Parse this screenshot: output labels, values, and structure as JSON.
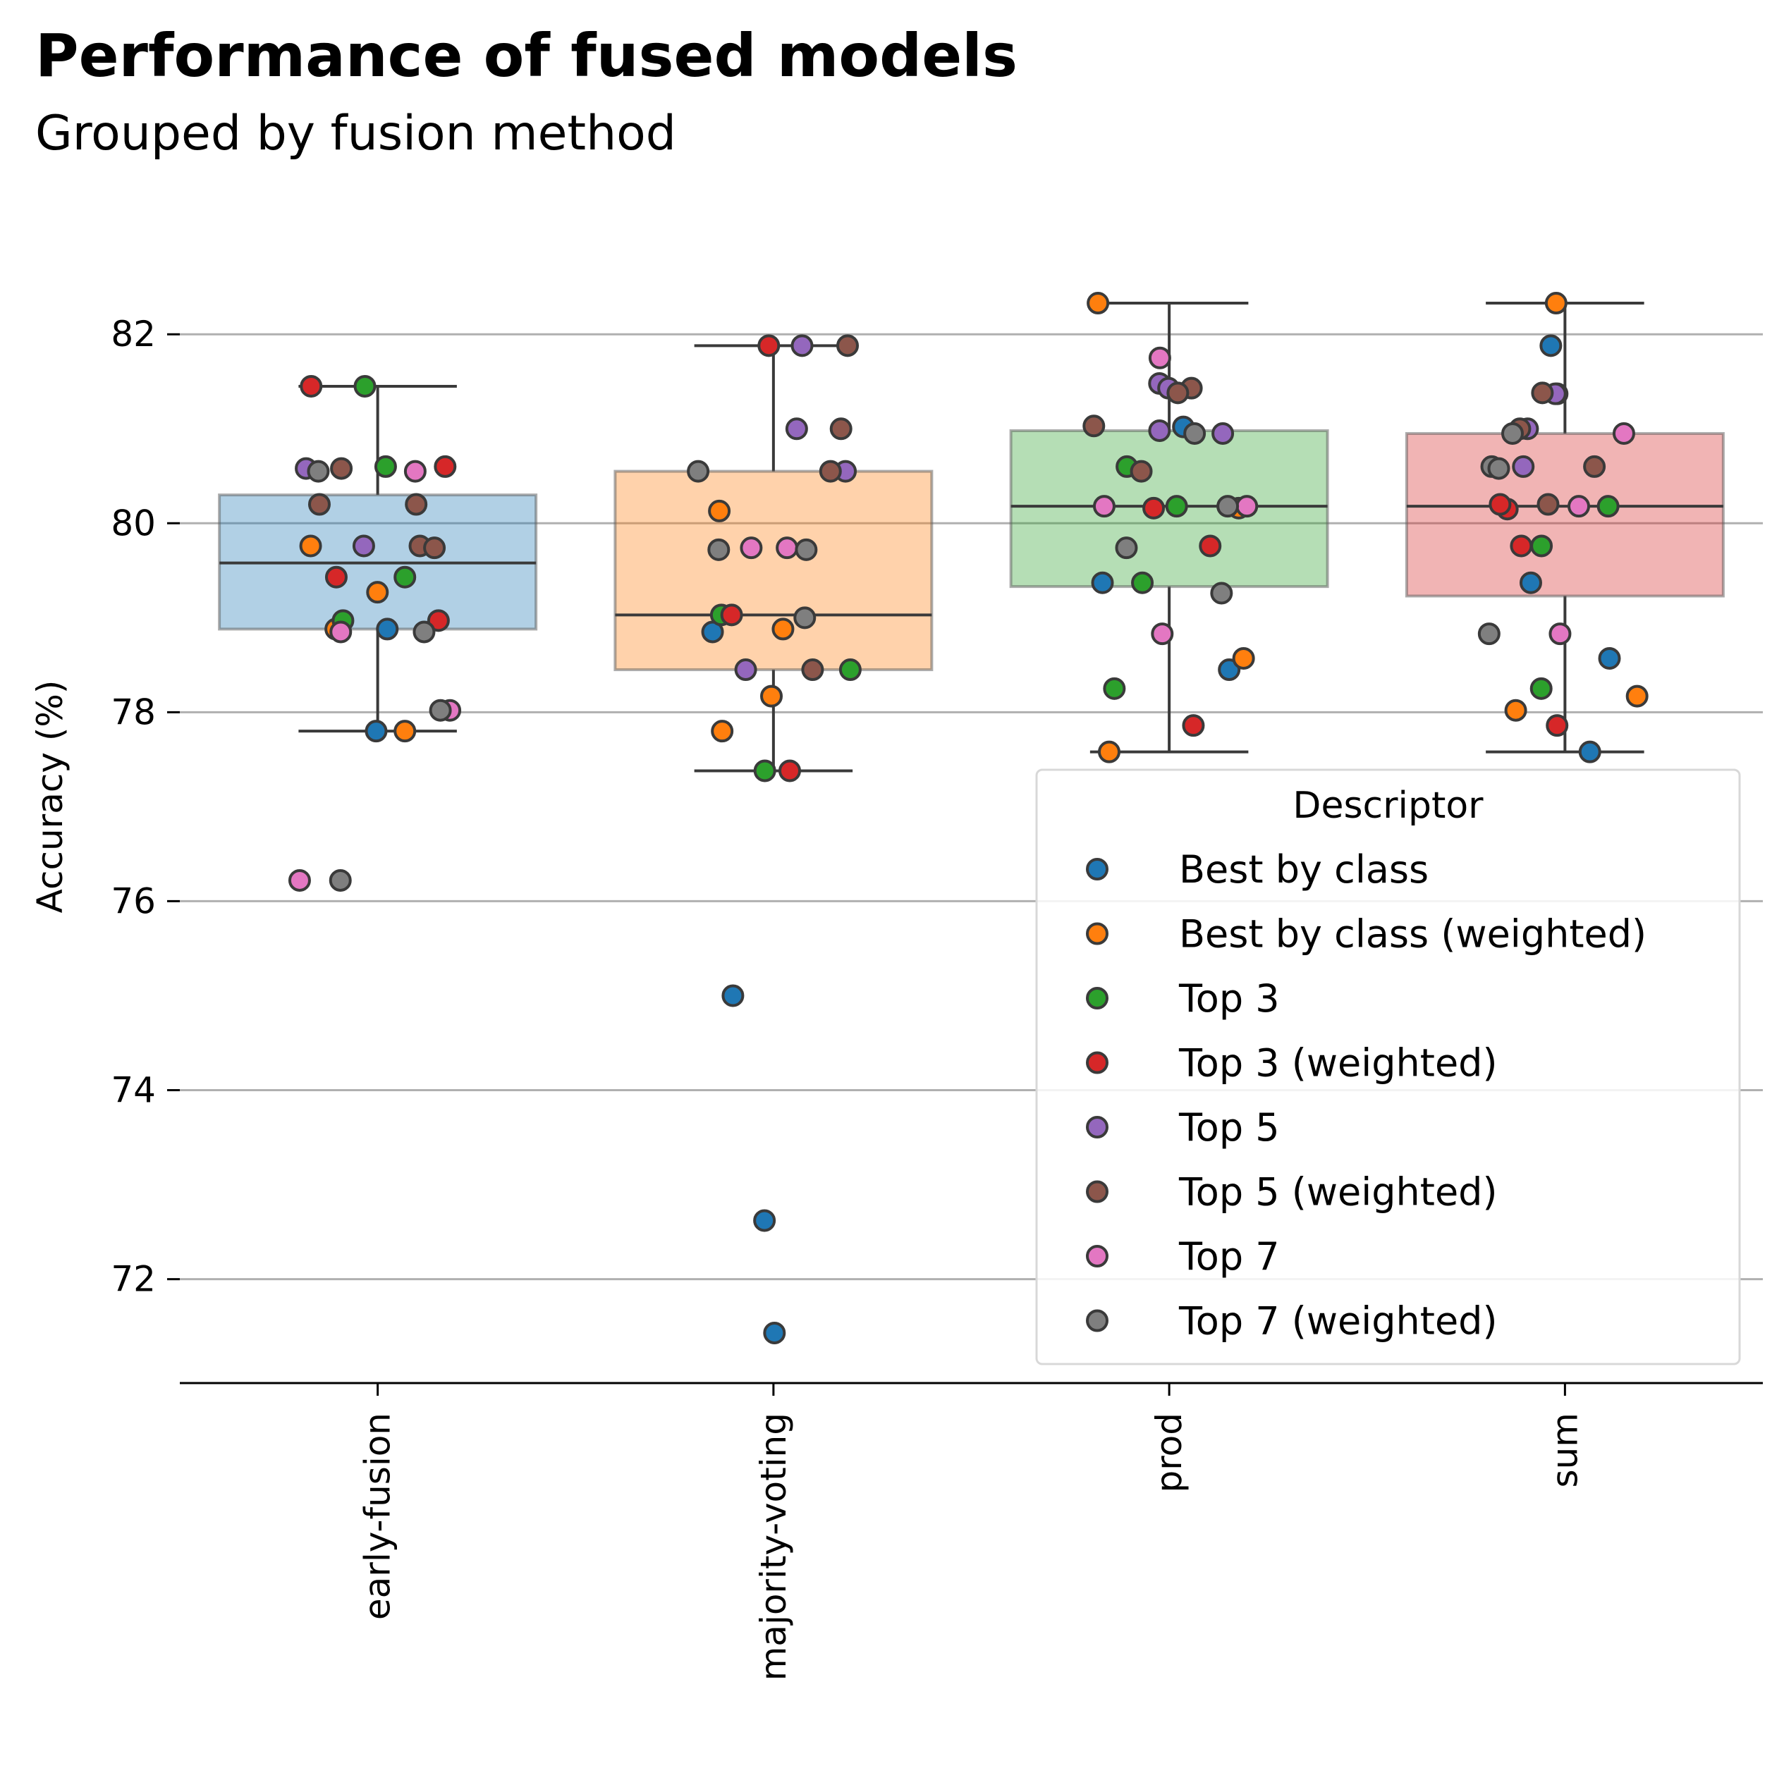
{
  "chart_data": {
    "type": "box",
    "title": "Performance of fused models",
    "subtitle": "Grouped by fusion method",
    "xlabel": "",
    "ylabel": "Accuracy (%)",
    "ylim": [
      70.9,
      83.3
    ],
    "yticks": [
      72,
      74,
      76,
      78,
      80,
      82
    ],
    "grid": "horizontal",
    "categories": [
      "early-fusion",
      "majority-voting",
      "prod",
      "sum"
    ],
    "box_colors": [
      "#1f77b4",
      "#ff7f0e",
      "#2ca02c",
      "#d62728"
    ],
    "boxes": [
      {
        "category": "early-fusion",
        "whisker_low": 77.8,
        "q1": 78.88,
        "median": 79.58,
        "q3": 80.3,
        "whisker_high": 81.45
      },
      {
        "category": "majority-voting",
        "whisker_low": 77.38,
        "q1": 78.45,
        "median": 79.03,
        "q3": 80.55,
        "whisker_high": 81.88
      },
      {
        "category": "prod",
        "whisker_low": 77.58,
        "q1": 79.33,
        "median": 80.18,
        "q3": 80.98,
        "whisker_high": 82.33
      },
      {
        "category": "sum",
        "whisker_low": 77.58,
        "q1": 79.23,
        "median": 80.18,
        "q3": 80.95,
        "whisker_high": 82.33
      }
    ],
    "legend": {
      "title": "Descriptor",
      "placement": "lower right",
      "entries": [
        {
          "label": "Best by class",
          "color": "#1f77b4"
        },
        {
          "label": "Best by class (weighted)",
          "color": "#ff7f0e"
        },
        {
          "label": "Top 3",
          "color": "#2ca02c"
        },
        {
          "label": "Top 3 (weighted)",
          "color": "#d62728"
        },
        {
          "label": "Top 5",
          "color": "#9467bd"
        },
        {
          "label": "Top 5 (weighted)",
          "color": "#8c564b"
        },
        {
          "label": "Top 7",
          "color": "#e377c2"
        },
        {
          "label": "Top 7 (weighted)",
          "color": "#7f7f7f"
        }
      ]
    },
    "series": [
      {
        "name": "Best by class",
        "points": [
          {
            "category": "early-fusion",
            "y": [
              77.8,
              78.88
            ]
          },
          {
            "category": "majority-voting",
            "y": [
              78.85,
              75.0,
              72.62,
              71.43
            ]
          },
          {
            "category": "prod",
            "y": [
              79.37,
              78.45,
              81.02
            ]
          },
          {
            "category": "sum",
            "y": [
              81.88,
              79.37,
              78.57,
              77.58
            ]
          }
        ]
      },
      {
        "name": "Best by class (weighted)",
        "points": [
          {
            "category": "early-fusion",
            "y": [
              79.76,
              79.27,
              78.88,
              77.8
            ]
          },
          {
            "category": "majority-voting",
            "y": [
              80.13,
              78.88,
              78.17,
              77.8
            ]
          },
          {
            "category": "prod",
            "y": [
              82.33,
              80.16,
              78.57,
              77.58
            ]
          },
          {
            "category": "sum",
            "y": [
              82.33,
              78.17,
              78.02
            ]
          }
        ]
      },
      {
        "name": "Top 3",
        "points": [
          {
            "category": "early-fusion",
            "y": [
              81.45,
              80.6,
              79.43,
              78.97
            ]
          },
          {
            "category": "majority-voting",
            "y": [
              79.03,
              78.45,
              77.38
            ]
          },
          {
            "category": "prod",
            "y": [
              80.6,
              80.18,
              79.37,
              78.25
            ]
          },
          {
            "category": "sum",
            "y": [
              80.18,
              79.76,
              78.25
            ]
          }
        ]
      },
      {
        "name": "Top 3 (weighted)",
        "points": [
          {
            "category": "early-fusion",
            "y": [
              81.45,
              80.6,
              79.43,
              78.97
            ]
          },
          {
            "category": "majority-voting",
            "y": [
              81.88,
              79.03,
              77.38
            ]
          },
          {
            "category": "prod",
            "y": [
              80.16,
              79.76,
              77.86
            ]
          },
          {
            "category": "sum",
            "y": [
              80.15,
              79.76,
              77.86,
              80.2
            ]
          }
        ]
      },
      {
        "name": "Top 5",
        "points": [
          {
            "category": "early-fusion",
            "y": [
              80.58,
              79.76
            ]
          },
          {
            "category": "majority-voting",
            "y": [
              81.88,
              81.0,
              80.55,
              78.45
            ]
          },
          {
            "category": "prod",
            "y": [
              81.48,
              81.43,
              80.98,
              80.95
            ]
          },
          {
            "category": "sum",
            "y": [
              81.37,
              81.37,
              81.0,
              80.6
            ]
          }
        ]
      },
      {
        "name": "Top 5 (weighted)",
        "points": [
          {
            "category": "early-fusion",
            "y": [
              80.2,
              80.2,
              80.58,
              79.76,
              79.74
            ]
          },
          {
            "category": "majority-voting",
            "y": [
              81.88,
              81.0,
              80.55,
              78.45
            ]
          },
          {
            "category": "prod",
            "y": [
              81.43,
              81.38,
              81.03,
              80.55
            ]
          },
          {
            "category": "sum",
            "y": [
              81.38,
              81.0,
              80.2,
              80.6
            ]
          }
        ]
      },
      {
        "name": "Top 7",
        "points": [
          {
            "category": "early-fusion",
            "y": [
              80.55,
              78.85,
              78.02,
              76.22
            ]
          },
          {
            "category": "majority-voting",
            "y": [
              79.74,
              79.74
            ]
          },
          {
            "category": "prod",
            "y": [
              81.75,
              80.18,
              80.18,
              78.83
            ]
          },
          {
            "category": "sum",
            "y": [
              80.95,
              80.18,
              78.83
            ]
          }
        ]
      },
      {
        "name": "Top 7 (weighted)",
        "points": [
          {
            "category": "early-fusion",
            "y": [
              80.55,
              78.85,
              78.02,
              76.22
            ]
          },
          {
            "category": "majority-voting",
            "y": [
              80.55,
              79.72,
              79.72,
              79.0
            ]
          },
          {
            "category": "prod",
            "y": [
              80.95,
              80.18,
              79.74,
              79.26
            ]
          },
          {
            "category": "sum",
            "y": [
              80.95,
              80.6,
              80.58,
              78.83
            ]
          }
        ]
      }
    ]
  }
}
